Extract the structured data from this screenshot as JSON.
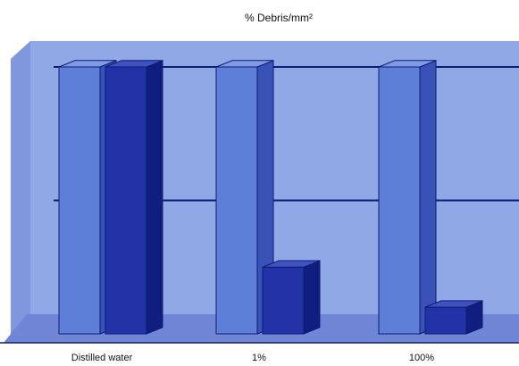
{
  "chart_data": {
    "type": "bar",
    "title": "% Debris/mm²",
    "xlabel": "",
    "ylabel": "",
    "categories": [
      "Distilled water",
      "1%",
      "100%"
    ],
    "series": [
      {
        "values": [
          100,
          100,
          100
        ]
      },
      {
        "values": [
          100,
          25,
          10
        ]
      }
    ],
    "ylim": [
      0,
      100
    ],
    "grid": true,
    "legend": "none"
  },
  "colors": {
    "plot_wall": "#90a8e6",
    "plot_wall_side": "#7f97dc",
    "floor": "#6f86d6",
    "grid_line": "#0b1f73",
    "series_front": [
      "#5e7fd8",
      "#2233a8"
    ],
    "series_side": [
      "#3a52b8",
      "#101e80"
    ],
    "series_top": [
      "#7f9ae6",
      "#3f52c0"
    ],
    "outline": "#0f1c6e"
  }
}
